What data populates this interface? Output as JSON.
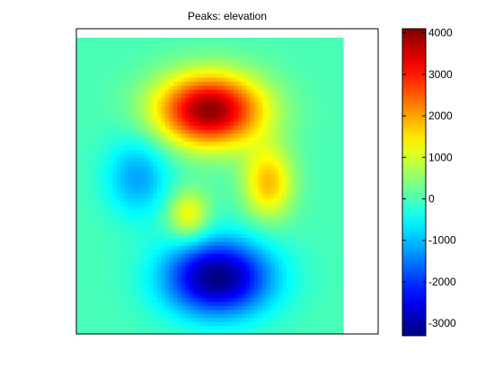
{
  "chart_data": {
    "type": "heatmap",
    "title": "Peaks: elevation",
    "xlabel": "",
    "ylabel": "",
    "grid": false,
    "colormap": "jet",
    "colorbar": {
      "label": "",
      "range": [
        -3300,
        4100
      ],
      "ticks": [
        4000,
        3000,
        2000,
        1000,
        0,
        -1000,
        -2000,
        -3000
      ],
      "tick_labels": [
        "4000",
        "3000",
        "2000",
        "1000",
        "0",
        "-1000",
        "-2000",
        "-3000"
      ],
      "placement": "right"
    },
    "features": [
      {
        "kind": "peak",
        "value": 4000
      },
      {
        "kind": "trough",
        "value": -3300
      },
      {
        "kind": "trough",
        "value": -1200
      },
      {
        "kind": "peak",
        "value": 1800
      },
      {
        "kind": "peak",
        "value": 1400
      }
    ]
  }
}
